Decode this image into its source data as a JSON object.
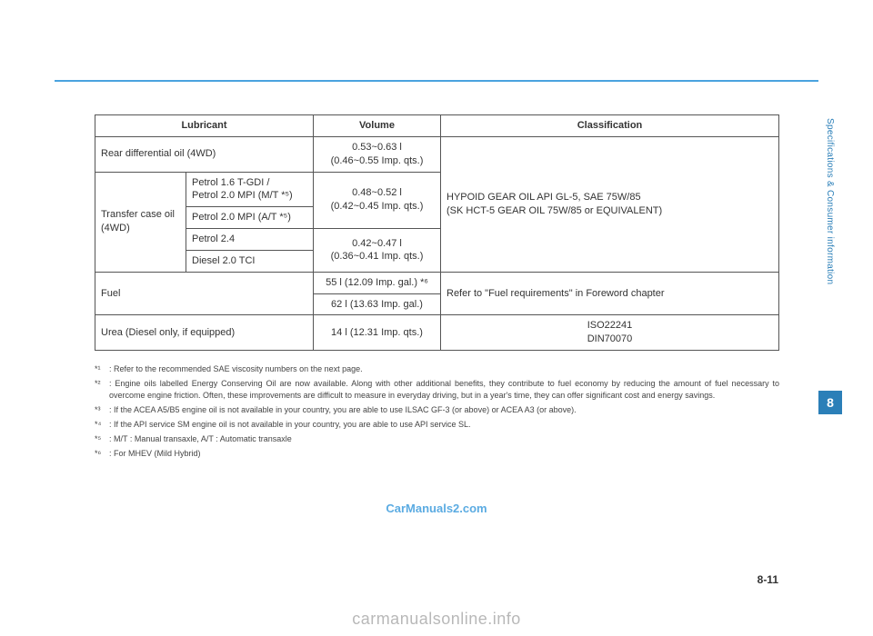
{
  "side_label": "Specifications & Consumer  information",
  "side_tab": "8",
  "page_number": "8-11",
  "watermark_center": "CarManuals2.com",
  "watermark_bottom": "carmanualsonline.info",
  "table": {
    "headers": {
      "lubricant": "Lubricant",
      "volume": "Volume",
      "classification": "Classification"
    },
    "rear_diff": {
      "label": "Rear differential oil (4WD)",
      "volume": "0.53~0.63 l\n(0.46~0.55 Imp. qts.)"
    },
    "transfer_case": {
      "label": "Transfer case oil\n(4WD)",
      "rows": {
        "r1": "Petrol 1.6 T-GDI /\nPetrol 2.0 MPI (M/T *⁵)",
        "r2": "Petrol 2.0 MPI (A/T *⁵)",
        "r3": "Petrol 2.4",
        "r4": "Diesel 2.0 TCI"
      },
      "vol1": "0.48~0.52 l\n(0.42~0.45 Imp. qts.)",
      "vol2": "0.42~0.47 l\n(0.36~0.41 Imp. qts.)"
    },
    "classification_main": "HYPOID GEAR OIL API GL-5, SAE 75W/85\n(SK HCT-5 GEAR OIL 75W/85 or EQUIVALENT)",
    "fuel": {
      "label": "Fuel",
      "vol1": "55 l (12.09 Imp. gal.) *⁶",
      "vol2": "62 l (13.63 Imp. gal.)",
      "classification": "Refer to \"Fuel requirements\" in Foreword chapter"
    },
    "urea": {
      "label": "Urea (Diesel only, if equipped)",
      "volume": "14 l (12.31 Imp. qts.)",
      "classification": "ISO22241\nDIN70070"
    }
  },
  "footnotes": {
    "f1": {
      "sup": "*¹",
      "text": ": Refer to the recommended SAE viscosity numbers on the next page."
    },
    "f2": {
      "sup": "*²",
      "text": ": Engine oils labelled Energy Conserving Oil are now available. Along with other additional benefits, they contribute to fuel economy by reducing the amount of fuel necessary to overcome engine friction. Often, these improvements are difficult to measure in everyday driving, but in a year's time, they can offer significant cost and energy savings."
    },
    "f3": {
      "sup": "*³",
      "text": ": If the ACEA A5/B5 engine oil is not available in your country, you are able to use ILSAC GF-3 (or above) or ACEA A3 (or above)."
    },
    "f4": {
      "sup": "*⁴",
      "text": ": If the API service SM engine oil is not available in your country, you are able to use API service SL."
    },
    "f5": {
      "sup": "*⁵",
      "text": ": M/T : Manual transaxle, A/T : Automatic transaxle"
    },
    "f6": {
      "sup": "*⁶",
      "text": ": For MHEV (Mild Hybrid)"
    }
  }
}
